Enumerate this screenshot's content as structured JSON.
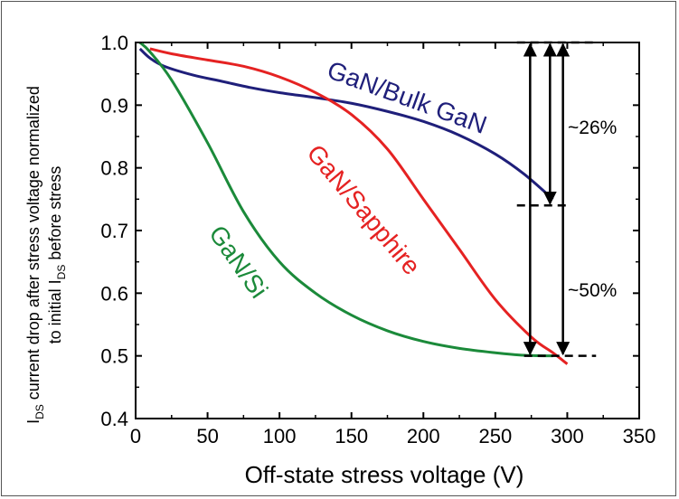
{
  "chart_data": {
    "type": "line",
    "xlabel": "Off-state stress voltage (V)",
    "ylabel": {
      "line1_pre": "I",
      "line1_sub": "DS",
      "line1_post": " current drop after stress voltage normalized",
      "line2_pre": "to initial I",
      "line2_sub": "DS",
      "line2_post": " before stress"
    },
    "xlim": [
      0,
      350
    ],
    "ylim": [
      0.4,
      1.0
    ],
    "xticks": [
      "0",
      "50",
      "100",
      "150",
      "200",
      "250",
      "300",
      "350"
    ],
    "yticks": [
      "0.4",
      "0.5",
      "0.6",
      "0.7",
      "0.8",
      "0.9",
      "1.0"
    ],
    "series": [
      {
        "name": "GaN/Bulk GaN",
        "color": "#1f1f7a",
        "x": [
          3,
          10,
          20,
          40,
          60,
          80,
          100,
          125,
          150,
          175,
          200,
          225,
          250,
          270,
          290
        ],
        "y": [
          0.99,
          0.975,
          0.962,
          0.948,
          0.938,
          0.928,
          0.92,
          0.912,
          0.903,
          0.89,
          0.874,
          0.852,
          0.822,
          0.79,
          0.75
        ]
      },
      {
        "name": "GaN/Sapphire",
        "color": "#e52222",
        "x": [
          10,
          25,
          50,
          75,
          100,
          125,
          150,
          175,
          200,
          225,
          250,
          275,
          290,
          300
        ],
        "y": [
          0.99,
          0.982,
          0.972,
          0.962,
          0.945,
          0.92,
          0.885,
          0.83,
          0.75,
          0.67,
          0.59,
          0.53,
          0.505,
          0.487
        ]
      },
      {
        "name": "GaN/Si",
        "color": "#1b8a3a",
        "x": [
          3,
          10,
          25,
          50,
          75,
          100,
          125,
          150,
          175,
          200,
          225,
          250,
          270,
          290
        ],
        "y": [
          1.0,
          0.985,
          0.94,
          0.84,
          0.73,
          0.65,
          0.6,
          0.565,
          0.54,
          0.523,
          0.512,
          0.505,
          0.501,
          0.5
        ]
      }
    ],
    "annotations": [
      {
        "text": "~26%",
        "from_y": 1.0,
        "to_y": 0.74
      },
      {
        "text": "~50%",
        "from_y": 1.0,
        "to_y": 0.5
      }
    ],
    "reference_lines": [
      1.0,
      0.74,
      0.5
    ]
  }
}
